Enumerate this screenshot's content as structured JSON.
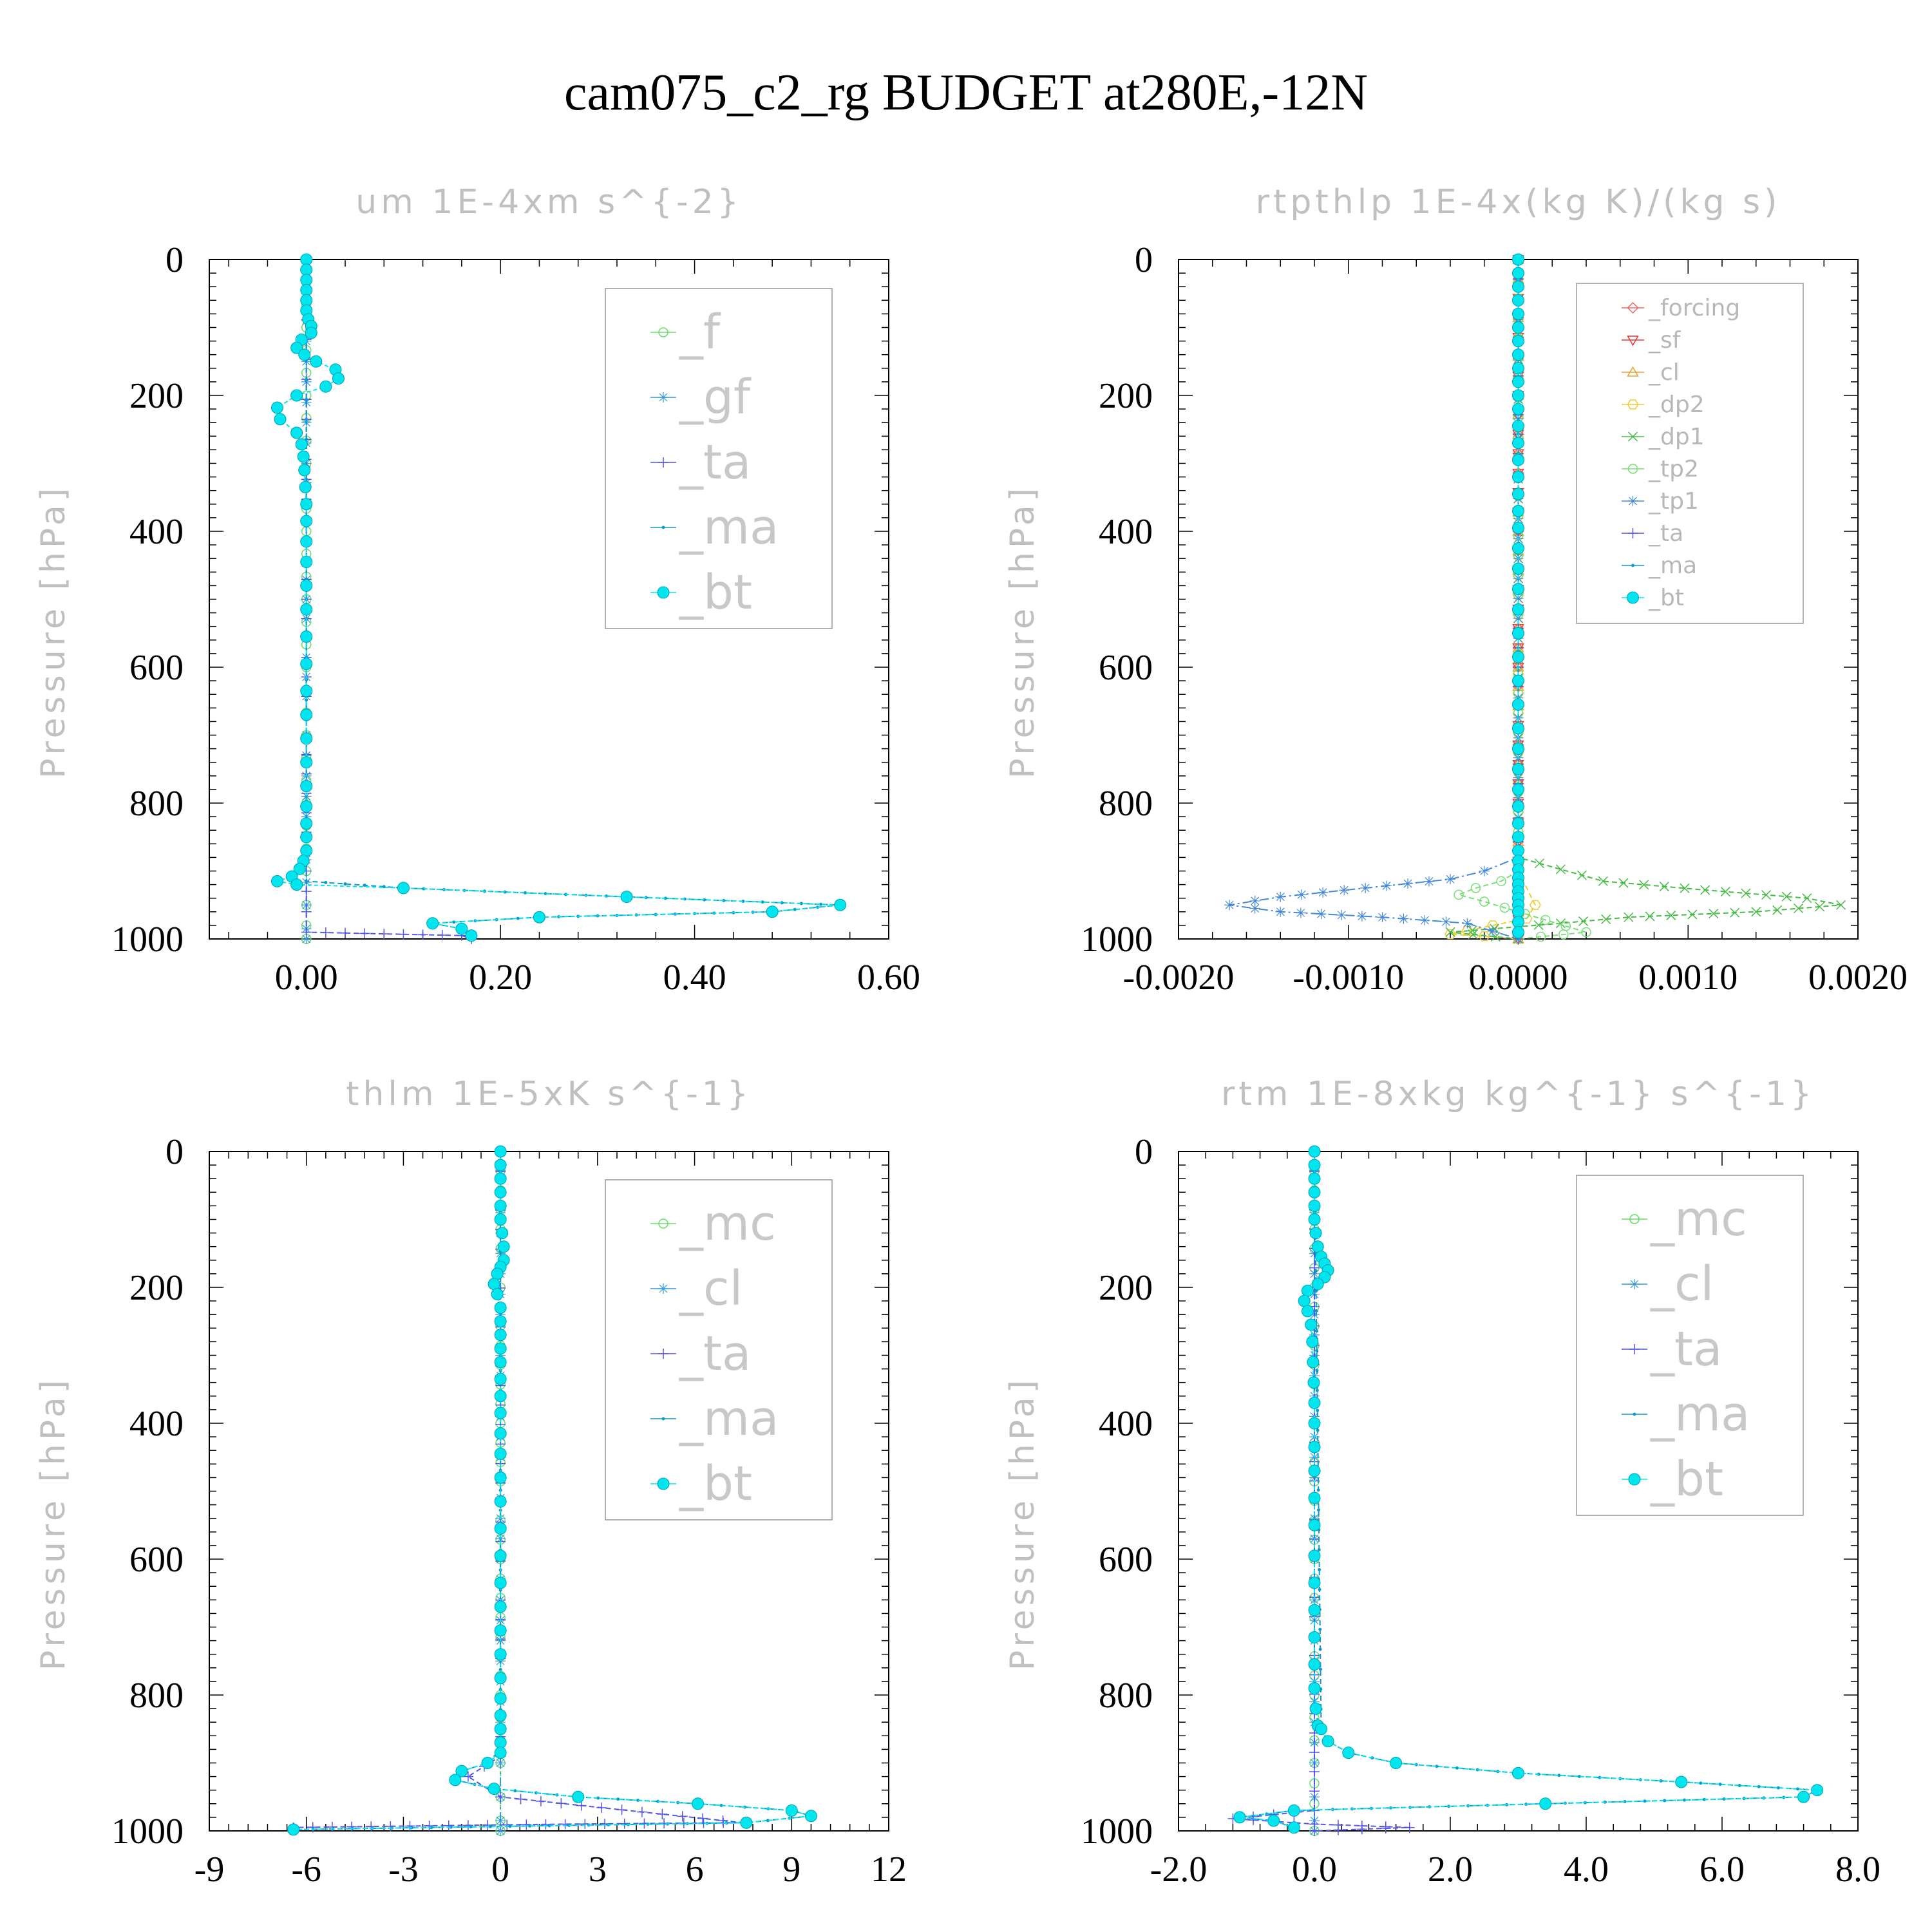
{
  "title": "cam075_c2_rg  BUDGET at280E,-12N",
  "chart_data": [
    {
      "type": "line",
      "title": "um  1E-4xm s^{-2}",
      "ylabel": "Pressure [hPa]",
      "xlim": [
        -0.1,
        0.6
      ],
      "ylim": [
        1000,
        0
      ],
      "xticks": [
        "0.00",
        "0.20",
        "0.40",
        "0.60"
      ],
      "xtick_values": [
        0,
        0.2,
        0.4,
        0.6
      ],
      "yticks": [
        "0",
        "200",
        "400",
        "600",
        "800",
        "1000"
      ],
      "legend": [
        "_f",
        "_gf",
        "_ta",
        "_ma",
        "_bt"
      ],
      "legend_colors": [
        "#66dd66",
        "#3399dd",
        "#5555ee",
        "#1199cc",
        "#00e5ee"
      ],
      "series": [
        {
          "name": "_f",
          "color": "#66dd66",
          "marker": "circle-open",
          "x": [
            0,
            0,
            0,
            0,
            0,
            0,
            0,
            0,
            0,
            0,
            0,
            0,
            0
          ],
          "y": [
            0,
            100,
            200,
            300,
            400,
            500,
            600,
            700,
            800,
            900,
            950,
            980,
            1000
          ]
        },
        {
          "name": "_gf",
          "color": "#3399dd",
          "marker": "asterisk",
          "x": [
            0,
            0,
            0,
            0,
            0,
            0,
            0,
            0,
            0
          ],
          "y": [
            0,
            150,
            300,
            500,
            700,
            850,
            950,
            985,
            1000
          ]
        },
        {
          "name": "_ta",
          "color": "#5555ee",
          "marker": "plus",
          "x": [
            0,
            0,
            0,
            0,
            0.16,
            0.17
          ],
          "y": [
            0,
            500,
            900,
            990,
            995,
            1000
          ]
        },
        {
          "name": "_ma",
          "color": "#1199cc",
          "marker": "dot",
          "x": [
            0,
            0,
            0,
            0.1,
            0.33,
            0.55,
            0.48,
            0.24,
            0.13,
            0.16,
            0.17,
            0.17
          ],
          "y": [
            0,
            500,
            915,
            925,
            938,
            950,
            960,
            968,
            977,
            985,
            995,
            1000
          ]
        },
        {
          "name": "_bt",
          "color": "#00e5ee",
          "marker": "filled-circle",
          "x": [
            0,
            0,
            0,
            0,
            0,
            0,
            0.002,
            0.005,
            0.005,
            -0.005,
            -0.01,
            -0.002,
            0.01,
            0.03,
            0.033,
            0.02,
            -0.01,
            -0.03,
            -0.027,
            -0.01,
            -0.005,
            -0.003,
            -0.002,
            -0.001,
            0,
            0,
            0,
            0,
            0,
            0,
            0,
            0,
            0,
            0,
            0,
            0,
            0,
            0,
            0,
            0,
            0,
            -0.003,
            -0.007,
            -0.015,
            -0.03,
            -0.01,
            0.1,
            0.33,
            0.55,
            0.48,
            0.24,
            0.13,
            0.16,
            0.17
          ],
          "y": [
            0,
            15,
            30,
            45,
            60,
            75,
            88,
            98,
            108,
            118,
            130,
            140,
            150,
            162,
            175,
            187,
            200,
            218,
            235,
            255,
            272,
            290,
            310,
            335,
            360,
            385,
            415,
            445,
            480,
            515,
            555,
            595,
            635,
            670,
            705,
            740,
            775,
            805,
            830,
            850,
            870,
            885,
            897,
            908,
            915,
            920,
            925,
            938,
            950,
            960,
            968,
            977,
            985,
            995
          ]
        }
      ]
    },
    {
      "type": "line",
      "title": "rtpthlp  1E-4x(kg K)/(kg s)",
      "ylabel": "Pressure [hPa]",
      "xlim": [
        -0.002,
        0.002
      ],
      "ylim": [
        1000,
        0
      ],
      "xticks": [
        "-0.0020",
        "-0.0010",
        "0.0000",
        "0.0010",
        "0.0020"
      ],
      "xtick_values": [
        -0.002,
        -0.001,
        0,
        0.001,
        0.002
      ],
      "yticks": [
        "0",
        "200",
        "400",
        "600",
        "800",
        "1000"
      ],
      "legend": [
        "_forcing",
        "_sf",
        "_cl",
        "_dp2",
        "_dp1",
        "_tp2",
        "_tp1",
        "_ta",
        "_ma",
        "_bt"
      ],
      "legend_colors": [
        "#ee6666",
        "#ee3333",
        "#eea030",
        "#eecc33",
        "#44bb44",
        "#77dd77",
        "#4488dd",
        "#5555ee",
        "#1199cc",
        "#00e5ee"
      ],
      "series": [
        {
          "name": "_forcing",
          "color": "#ee6666",
          "marker": "diamond-open",
          "x": [
            0,
            0
          ],
          "y": [
            0,
            1000
          ]
        },
        {
          "name": "_sf",
          "color": "#ee3333",
          "marker": "triangle-down",
          "x": [
            0,
            0
          ],
          "y": [
            0,
            1000
          ]
        },
        {
          "name": "_cl",
          "color": "#eea030",
          "marker": "triangle-up",
          "x": [
            0,
            0
          ],
          "y": [
            0,
            1000
          ]
        },
        {
          "name": "_dp2",
          "color": "#eecc33",
          "marker": "hexagon-open",
          "x": [
            0,
            0,
            0.0001,
            5e-05,
            -0.00015,
            -0.0003,
            -0.0004,
            -0.0002,
            0
          ],
          "y": [
            0,
            900,
            950,
            970,
            980,
            988,
            993,
            996,
            1000
          ]
        },
        {
          "name": "_dp1",
          "color": "#44bb44",
          "marker": "x",
          "x": [
            0,
            0,
            0.0005,
            0.0011,
            0.0017,
            0.0019,
            0.0014,
            0.00065,
            0.00025,
            -0.0004,
            0
          ],
          "y": [
            0,
            880,
            915,
            928,
            940,
            950,
            960,
            968,
            977,
            990,
            1000
          ]
        },
        {
          "name": "_tp2",
          "color": "#77dd77",
          "marker": "circle-open",
          "x": [
            0,
            0,
            -0.0001,
            -0.00025,
            -0.00035,
            -0.0002,
            0.0004,
            0
          ],
          "y": [
            0,
            900,
            915,
            925,
            935,
            945,
            990,
            1000
          ]
        },
        {
          "name": "_tp1",
          "color": "#4488dd",
          "marker": "asterisk",
          "x": [
            0,
            0,
            -0.0002,
            -0.0004,
            -0.0009,
            -0.0014,
            -0.0017,
            -0.0014,
            -0.0008,
            -0.0003,
            0
          ],
          "y": [
            0,
            880,
            900,
            912,
            925,
            938,
            950,
            960,
            968,
            977,
            1000
          ]
        },
        {
          "name": "_ta",
          "color": "#5555ee",
          "marker": "plus",
          "x": [
            0,
            0
          ],
          "y": [
            0,
            1000
          ]
        },
        {
          "name": "_ma",
          "color": "#1199cc",
          "marker": "dot",
          "x": [
            0,
            0
          ],
          "y": [
            0,
            1000
          ]
        },
        {
          "name": "_bt",
          "color": "#00e5ee",
          "marker": "filled-circle",
          "x": [
            0,
            0,
            0,
            0,
            0,
            0,
            0,
            0,
            0,
            0,
            0,
            0,
            0,
            0,
            0,
            0,
            0,
            0,
            0,
            0,
            0,
            0,
            0,
            0,
            0,
            0,
            0,
            0,
            0,
            0,
            0,
            0,
            0,
            0,
            0,
            0,
            0,
            0,
            0,
            0,
            0,
            0,
            0,
            0,
            0
          ],
          "y": [
            0,
            20,
            40,
            60,
            80,
            100,
            120,
            140,
            160,
            180,
            200,
            220,
            245,
            270,
            295,
            320,
            345,
            370,
            395,
            425,
            455,
            485,
            515,
            550,
            585,
            620,
            655,
            690,
            720,
            750,
            780,
            805,
            830,
            850,
            870,
            885,
            898,
            910,
            920,
            930,
            940,
            950,
            960,
            975,
            990
          ]
        }
      ]
    },
    {
      "type": "line",
      "title": "thlm  1E-5xK s^{-1}",
      "ylabel": "Pressure [hPa]",
      "xlim": [
        -9,
        12
      ],
      "ylim": [
        1000,
        0
      ],
      "xticks": [
        "-9",
        "-6",
        "-3",
        "0",
        "3",
        "6",
        "9",
        "12"
      ],
      "xtick_values": [
        -9,
        -6,
        -3,
        0,
        3,
        6,
        9,
        12
      ],
      "yticks": [
        "0",
        "200",
        "400",
        "600",
        "800",
        "1000"
      ],
      "legend": [
        "_mc",
        "_cl",
        "_ta",
        "_ma",
        "_bt"
      ],
      "legend_colors": [
        "#66dd66",
        "#3399dd",
        "#5555ee",
        "#1199cc",
        "#00e5ee"
      ],
      "series": [
        {
          "name": "_mc",
          "color": "#66dd66",
          "marker": "circle-open",
          "x": [
            0,
            0,
            0,
            0,
            0,
            0,
            0,
            0,
            0
          ],
          "y": [
            0,
            200,
            400,
            600,
            800,
            900,
            950,
            985,
            1000
          ]
        },
        {
          "name": "_cl",
          "color": "#3399dd",
          "marker": "asterisk",
          "x": [
            0,
            0,
            0,
            0,
            0,
            0,
            0
          ],
          "y": [
            0,
            300,
            600,
            900,
            950,
            985,
            1000
          ]
        },
        {
          "name": "_ta",
          "color": "#5555ee",
          "marker": "plus",
          "x": [
            0,
            0,
            -0.5,
            -1.0,
            0,
            7.5,
            2,
            -6.4
          ],
          "y": [
            0,
            890,
            905,
            920,
            950,
            988,
            990,
            995
          ]
        },
        {
          "name": "_ma",
          "color": "#1199cc",
          "marker": "dot",
          "x": [
            0,
            0,
            -0.4,
            -1.2,
            -1.4,
            -0.2,
            2.4,
            6.1,
            9.0,
            9.6,
            7.6,
            -6.4
          ],
          "y": [
            0,
            880,
            900,
            912,
            925,
            938,
            950,
            960,
            970,
            978,
            988,
            998
          ]
        },
        {
          "name": "_bt",
          "color": "#00e5ee",
          "marker": "filled-circle",
          "x": [
            0,
            0,
            0,
            0,
            0,
            0,
            0.05,
            0.1,
            0.1,
            0,
            -0.1,
            -0.2,
            -0.1,
            0,
            0,
            0,
            0,
            0,
            0,
            0,
            0,
            0,
            0,
            0,
            0,
            0,
            0,
            0,
            0,
            0,
            0,
            0,
            0,
            0,
            0,
            0,
            0,
            -0.4,
            -1.2,
            -1.4,
            -0.2,
            2.4,
            6.1,
            9.0,
            9.6,
            7.6,
            -6.4
          ],
          "y": [
            0,
            20,
            40,
            60,
            80,
            100,
            120,
            140,
            160,
            170,
            180,
            195,
            210,
            230,
            250,
            270,
            290,
            310,
            335,
            360,
            385,
            415,
            445,
            480,
            515,
            555,
            595,
            635,
            670,
            705,
            740,
            775,
            805,
            830,
            850,
            870,
            885,
            900,
            912,
            925,
            938,
            950,
            960,
            970,
            978,
            988,
            998
          ]
        }
      ]
    },
    {
      "type": "line",
      "title": "rtm  1E-8xkg kg^{-1} s^{-1}",
      "ylabel": "Pressure [hPa]",
      "xlim": [
        -2,
        8
      ],
      "ylim": [
        1000,
        0
      ],
      "xticks": [
        "-2.0",
        "0.0",
        "2.0",
        "4.0",
        "6.0",
        "8.0"
      ],
      "xtick_values": [
        -2,
        0,
        2,
        4,
        6,
        8
      ],
      "yticks": [
        "0",
        "200",
        "400",
        "600",
        "800",
        "1000"
      ],
      "legend": [
        "_mc",
        "_cl",
        "_ta",
        "_ma",
        "_bt"
      ],
      "legend_colors": [
        "#66dd66",
        "#3399dd",
        "#5555ee",
        "#1199cc",
        "#00e5ee"
      ],
      "series": [
        {
          "name": "_mc",
          "color": "#66dd66",
          "marker": "circle-open",
          "x": [
            0,
            0,
            0,
            0,
            0,
            0,
            0,
            0
          ],
          "y": [
            0,
            200,
            400,
            600,
            800,
            900,
            960,
            1000
          ]
        },
        {
          "name": "_cl",
          "color": "#3399dd",
          "marker": "asterisk",
          "x": [
            0,
            0,
            0,
            0,
            0,
            0,
            0
          ],
          "y": [
            0,
            300,
            600,
            900,
            950,
            985,
            1000
          ]
        },
        {
          "name": "_ta",
          "color": "#5555ee",
          "marker": "plus",
          "x": [
            0,
            0,
            -1.2,
            0,
            1.4,
            0
          ],
          "y": [
            0,
            970,
            982,
            990,
            995,
            1000
          ]
        },
        {
          "name": "_ma",
          "color": "#1199cc",
          "marker": "dot",
          "x": [
            0,
            0.1,
            0.2,
            0.5,
            1.2,
            3.0,
            5.4,
            7.4,
            7.2,
            3.4,
            -0.3,
            -1.1,
            -0.6,
            -0.3
          ],
          "y": [
            0,
            850,
            868,
            885,
            900,
            915,
            928,
            940,
            950,
            960,
            970,
            980,
            985,
            995
          ]
        },
        {
          "name": "_bt",
          "color": "#00e5ee",
          "marker": "filled-circle",
          "x": [
            0,
            0,
            0,
            0,
            0,
            0,
            0.02,
            0.05,
            0.1,
            0.15,
            0.2,
            0.15,
            0.05,
            -0.1,
            -0.15,
            -0.1,
            -0.05,
            -0.03,
            -0.02,
            -0.01,
            0,
            0,
            0,
            0,
            0,
            0,
            0,
            0,
            0,
            0,
            0,
            0,
            0.02,
            0.05,
            0.1,
            0.2,
            0.5,
            1.2,
            3.0,
            5.4,
            7.4,
            7.2,
            3.4,
            -0.3,
            -1.1,
            -0.6,
            -0.3
          ],
          "y": [
            0,
            20,
            40,
            60,
            80,
            100,
            120,
            140,
            155,
            165,
            175,
            185,
            195,
            205,
            220,
            235,
            255,
            280,
            310,
            340,
            370,
            400,
            435,
            470,
            510,
            550,
            595,
            635,
            675,
            715,
            755,
            790,
            820,
            845,
            850,
            868,
            885,
            900,
            915,
            928,
            940,
            950,
            960,
            970,
            980,
            985,
            995
          ]
        }
      ]
    }
  ]
}
